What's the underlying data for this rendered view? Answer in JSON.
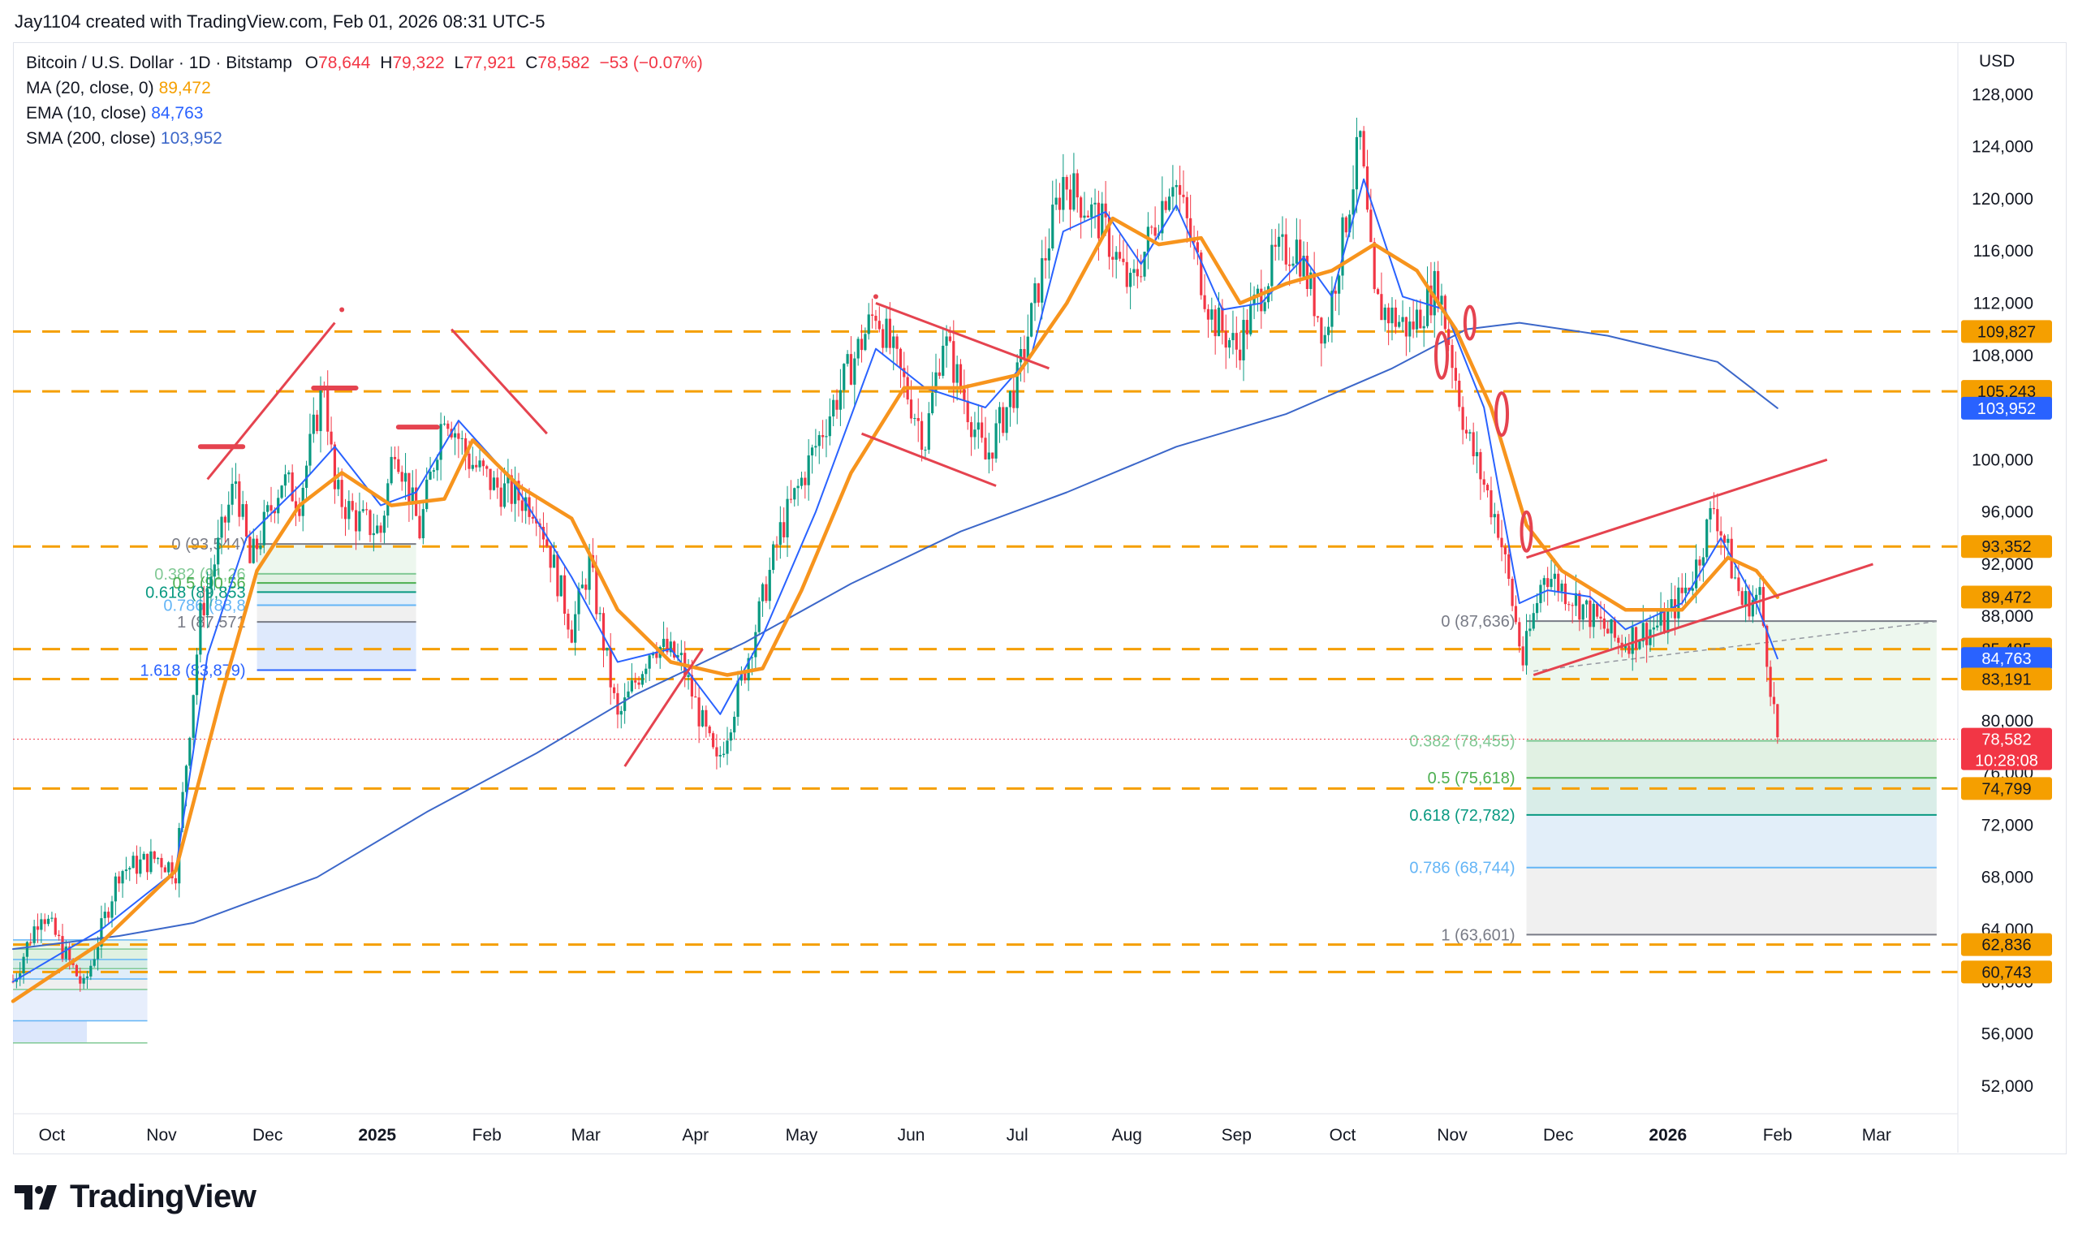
{
  "header": {
    "credit": "Jay1104 created with TradingView.com, Feb 01, 2026 08:31 UTC-5"
  },
  "legend": {
    "symbol": "Bitcoin / U.S. Dollar · 1D · Bitstamp",
    "open_label": "O",
    "open": "78,644",
    "high_label": "H",
    "high": "79,322",
    "low_label": "L",
    "low": "77,921",
    "close_label": "C",
    "close": "78,582",
    "change": "−53 (−0.07%)",
    "ma_label": "MA (20, close, 0)",
    "ma_value": "89,472",
    "ema_label": "EMA (10, close)",
    "ema_value": "84,763",
    "sma_label": "SMA (200, close)",
    "sma_value": "103,952"
  },
  "axis": {
    "currency": "USD"
  },
  "brand": {
    "name": "TradingView"
  },
  "colors": {
    "ma": "#f7941d",
    "ema": "#2962ff",
    "sma": "#3c67c9",
    "levels": "#f59f00",
    "trend": "#e5434f",
    "down": "#f23645",
    "up": "#089981"
  },
  "chart_data": {
    "type": "candlestick",
    "y_axis": {
      "min": 50000,
      "max": 132000,
      "ticks": [
        "52,000",
        "56,000",
        "60,000",
        "64,000",
        "68,000",
        "72,000",
        "76,000",
        "80,000",
        "84,000",
        "88,000",
        "92,000",
        "96,000",
        "100,000",
        "104,000",
        "108,000",
        "112,000",
        "116,000",
        "120,000",
        "124,000",
        "128,000"
      ]
    },
    "x_axis": {
      "labels": [
        {
          "text": "Oct",
          "date": "2024-10-01",
          "bold": false
        },
        {
          "text": "Nov",
          "date": "2024-11-01",
          "bold": false
        },
        {
          "text": "Dec",
          "date": "2024-12-01",
          "bold": false
        },
        {
          "text": "2025",
          "date": "2025-01-01",
          "bold": true
        },
        {
          "text": "Feb",
          "date": "2025-02-01",
          "bold": false
        },
        {
          "text": "Mar",
          "date": "2025-03-01",
          "bold": false
        },
        {
          "text": "Apr",
          "date": "2025-04-01",
          "bold": false
        },
        {
          "text": "May",
          "date": "2025-05-01",
          "bold": false
        },
        {
          "text": "Jun",
          "date": "2025-06-01",
          "bold": false
        },
        {
          "text": "Jul",
          "date": "2025-07-01",
          "bold": false
        },
        {
          "text": "Aug",
          "date": "2025-08-01",
          "bold": false
        },
        {
          "text": "Sep",
          "date": "2025-09-01",
          "bold": false
        },
        {
          "text": "Oct",
          "date": "2025-10-01",
          "bold": false
        },
        {
          "text": "Nov",
          "date": "2025-11-01",
          "bold": false
        },
        {
          "text": "Dec",
          "date": "2025-12-01",
          "bold": false
        },
        {
          "text": "2026",
          "date": "2026-01-01",
          "bold": true
        },
        {
          "text": "Feb",
          "date": "2026-02-01",
          "bold": false
        },
        {
          "text": "Mar",
          "date": "2026-03-01",
          "bold": false
        }
      ]
    },
    "date_range": [
      "2024-09-20",
      "2026-03-24"
    ],
    "price_path": [
      [
        "2024-09-20",
        60000
      ],
      [
        "2024-09-28",
        65500
      ],
      [
        "2024-10-10",
        59500
      ],
      [
        "2024-10-20",
        68500
      ],
      [
        "2024-10-31",
        69500
      ],
      [
        "2024-11-05",
        68500
      ],
      [
        "2024-11-12",
        88000
      ],
      [
        "2024-11-22",
        98500
      ],
      [
        "2024-11-26",
        92000
      ],
      [
        "2024-12-05",
        98500
      ],
      [
        "2024-12-10",
        97000
      ],
      [
        "2024-12-17",
        106000
      ],
      [
        "2024-12-20",
        97500
      ],
      [
        "2024-12-26",
        95500
      ],
      [
        "2025-01-02",
        94500
      ],
      [
        "2025-01-06",
        101500
      ],
      [
        "2025-01-13",
        94500
      ],
      [
        "2025-01-20",
        104000
      ],
      [
        "2025-01-27",
        100000
      ],
      [
        "2025-02-03",
        98000
      ],
      [
        "2025-02-15",
        96500
      ],
      [
        "2025-02-25",
        87000
      ],
      [
        "2025-03-02",
        92000
      ],
      [
        "2025-03-10",
        80000
      ],
      [
        "2025-03-20",
        86000
      ],
      [
        "2025-03-28",
        84500
      ],
      [
        "2025-04-07",
        76500
      ],
      [
        "2025-04-15",
        84000
      ],
      [
        "2025-04-25",
        94500
      ],
      [
        "2025-05-08",
        103000
      ],
      [
        "2025-05-22",
        111500
      ],
      [
        "2025-06-05",
        101500
      ],
      [
        "2025-06-10",
        109500
      ],
      [
        "2025-06-22",
        100000
      ],
      [
        "2025-07-01",
        106000
      ],
      [
        "2025-07-10",
        117000
      ],
      [
        "2025-07-14",
        121500
      ],
      [
        "2025-07-25",
        118000
      ],
      [
        "2025-08-02",
        113000
      ],
      [
        "2025-08-14",
        122000
      ],
      [
        "2025-08-25",
        111000
      ],
      [
        "2025-09-01",
        108500
      ],
      [
        "2025-09-12",
        115500
      ],
      [
        "2025-09-18",
        116500
      ],
      [
        "2025-09-26",
        109500
      ],
      [
        "2025-10-06",
        124500
      ],
      [
        "2025-10-10",
        112000
      ],
      [
        "2025-10-20",
        110000
      ],
      [
        "2025-10-28",
        113500
      ],
      [
        "2025-11-05",
        102000
      ],
      [
        "2025-11-14",
        95000
      ],
      [
        "2025-11-21",
        84500
      ],
      [
        "2025-11-27",
        91500
      ],
      [
        "2025-12-05",
        89500
      ],
      [
        "2025-12-18",
        86000
      ],
      [
        "2025-12-31",
        87500
      ],
      [
        "2026-01-08",
        91000
      ],
      [
        "2026-01-14",
        96500
      ],
      [
        "2026-01-22",
        89000
      ],
      [
        "2026-01-27",
        89500
      ],
      [
        "2026-02-01",
        78582
      ]
    ],
    "ma20": [
      [
        "2024-09-20",
        58500
      ],
      [
        "2024-10-15",
        63000
      ],
      [
        "2024-11-05",
        68500
      ],
      [
        "2024-11-18",
        82000
      ],
      [
        "2024-11-28",
        91500
      ],
      [
        "2024-12-10",
        96500
      ],
      [
        "2024-12-22",
        99000
      ],
      [
        "2025-01-05",
        96500
      ],
      [
        "2025-01-20",
        97000
      ],
      [
        "2025-01-28",
        101500
      ],
      [
        "2025-02-10",
        98000
      ],
      [
        "2025-02-25",
        95500
      ],
      [
        "2025-03-10",
        88500
      ],
      [
        "2025-03-25",
        84500
      ],
      [
        "2025-04-10",
        83500
      ],
      [
        "2025-04-20",
        84000
      ],
      [
        "2025-05-01",
        90000
      ],
      [
        "2025-05-15",
        99000
      ],
      [
        "2025-05-30",
        105500
      ],
      [
        "2025-06-15",
        105500
      ],
      [
        "2025-07-01",
        106500
      ],
      [
        "2025-07-15",
        112000
      ],
      [
        "2025-07-28",
        118500
      ],
      [
        "2025-08-10",
        116500
      ],
      [
        "2025-08-22",
        117000
      ],
      [
        "2025-09-02",
        112000
      ],
      [
        "2025-09-15",
        113500
      ],
      [
        "2025-09-28",
        114500
      ],
      [
        "2025-10-10",
        116500
      ],
      [
        "2025-10-22",
        114500
      ],
      [
        "2025-11-02",
        110000
      ],
      [
        "2025-11-12",
        104000
      ],
      [
        "2025-11-22",
        95000
      ],
      [
        "2025-12-02",
        91500
      ],
      [
        "2025-12-20",
        88500
      ],
      [
        "2026-01-05",
        88500
      ],
      [
        "2026-01-18",
        92500
      ],
      [
        "2026-01-26",
        91500
      ],
      [
        "2026-02-01",
        89472
      ]
    ],
    "ema10": [
      [
        "2024-09-20",
        60000
      ],
      [
        "2024-10-15",
        64000
      ],
      [
        "2024-11-05",
        68500
      ],
      [
        "2024-11-14",
        85000
      ],
      [
        "2024-11-25",
        94000
      ],
      [
        "2024-12-10",
        98000
      ],
      [
        "2024-12-20",
        101000
      ],
      [
        "2025-01-02",
        96500
      ],
      [
        "2025-01-12",
        97500
      ],
      [
        "2025-01-24",
        103000
      ],
      [
        "2025-02-08",
        98500
      ],
      [
        "2025-02-25",
        91000
      ],
      [
        "2025-03-10",
        84500
      ],
      [
        "2025-03-25",
        85500
      ],
      [
        "2025-04-08",
        80500
      ],
      [
        "2025-04-20",
        86500
      ],
      [
        "2025-05-05",
        96000
      ],
      [
        "2025-05-22",
        108500
      ],
      [
        "2025-06-05",
        105500
      ],
      [
        "2025-06-22",
        104000
      ],
      [
        "2025-07-05",
        108000
      ],
      [
        "2025-07-14",
        117500
      ],
      [
        "2025-07-26",
        119000
      ],
      [
        "2025-08-05",
        115000
      ],
      [
        "2025-08-15",
        119500
      ],
      [
        "2025-08-28",
        111500
      ],
      [
        "2025-09-08",
        112000
      ],
      [
        "2025-09-20",
        115500
      ],
      [
        "2025-09-28",
        112500
      ],
      [
        "2025-10-07",
        121500
      ],
      [
        "2025-10-18",
        112500
      ],
      [
        "2025-10-30",
        111500
      ],
      [
        "2025-11-10",
        104000
      ],
      [
        "2025-11-20",
        89000
      ],
      [
        "2025-11-28",
        90000
      ],
      [
        "2025-12-10",
        89500
      ],
      [
        "2025-12-20",
        87000
      ],
      [
        "2026-01-05",
        89000
      ],
      [
        "2026-01-16",
        94000
      ],
      [
        "2026-01-26",
        89000
      ],
      [
        "2026-02-01",
        84763
      ]
    ],
    "sma200": [
      [
        "2024-09-20",
        62500
      ],
      [
        "2024-10-20",
        63500
      ],
      [
        "2024-11-10",
        64500
      ],
      [
        "2024-12-15",
        68000
      ],
      [
        "2025-01-15",
        73000
      ],
      [
        "2025-02-15",
        77500
      ],
      [
        "2025-03-15",
        82000
      ],
      [
        "2025-04-15",
        86000
      ],
      [
        "2025-05-15",
        90500
      ],
      [
        "2025-06-15",
        94500
      ],
      [
        "2025-07-15",
        97500
      ],
      [
        "2025-08-15",
        101000
      ],
      [
        "2025-09-15",
        103500
      ],
      [
        "2025-10-15",
        107000
      ],
      [
        "2025-11-05",
        110000
      ],
      [
        "2025-11-20",
        110500
      ],
      [
        "2025-12-15",
        109500
      ],
      [
        "2026-01-15",
        107500
      ],
      [
        "2026-02-01",
        103952
      ]
    ],
    "horizontal_levels": [
      109827,
      105243,
      93352,
      85485,
      83191,
      74799,
      62836,
      60743
    ],
    "last_price": 78582,
    "countdown": "10:28:08",
    "price_badges": [
      {
        "value": "109,827",
        "price": 109827,
        "bg": "#f59f00",
        "fg": "#131722"
      },
      {
        "value": "105,243",
        "price": 105243,
        "bg": "#f59f00",
        "fg": "#131722"
      },
      {
        "value": "103,952",
        "price": 103952,
        "bg": "#2962ff",
        "fg": "#ffffff"
      },
      {
        "value": "93,352",
        "price": 93352,
        "bg": "#f59f00",
        "fg": "#131722"
      },
      {
        "value": "89,472",
        "price": 89472,
        "bg": "#f59f00",
        "fg": "#131722"
      },
      {
        "value": "85,485",
        "price": 85485,
        "bg": "#f59f00",
        "fg": "#131722"
      },
      {
        "value": "84,763",
        "price": 84763,
        "bg": "#2962ff",
        "fg": "#ffffff"
      },
      {
        "value": "83,191",
        "price": 83191,
        "bg": "#f59f00",
        "fg": "#131722"
      },
      {
        "value": "78,582",
        "price": 78582,
        "bg": "#f23645",
        "fg": "#ffffff"
      },
      {
        "value": "74,799",
        "price": 74799,
        "bg": "#f59f00",
        "fg": "#131722"
      },
      {
        "value": "62,836",
        "price": 62836,
        "bg": "#f59f00",
        "fg": "#131722"
      },
      {
        "value": "60,743",
        "price": 60743,
        "bg": "#f59f00",
        "fg": "#131722"
      }
    ],
    "fib_recent": {
      "start": "2025-11-22",
      "end": "2026-03-18",
      "levels": [
        {
          "label": "0 (87,636)",
          "price": 87636,
          "color": "#787b86"
        },
        {
          "label": "0.382 (78,455)",
          "price": 78455,
          "color": "#81c995"
        },
        {
          "label": "0.5 (75,618)",
          "price": 75618,
          "color": "#4caf50"
        },
        {
          "label": "0.618 (72,782)",
          "price": 72782,
          "color": "#089981"
        },
        {
          "label": "0.786 (68,744)",
          "price": 68744,
          "color": "#64b5f6"
        },
        {
          "label": "1 (63,601)",
          "price": 63601,
          "color": "#787b86"
        }
      ]
    },
    "fib_early": {
      "start": "2024-11-28",
      "end": "2025-01-12",
      "levels": [
        {
          "label": "0 (93,544)",
          "price": 93544,
          "color": "#787b86"
        },
        {
          "label": "0.382 (91,26",
          "price": 91260,
          "color": "#81c995"
        },
        {
          "label": "0.5 (90,56",
          "price": 90560,
          "color": "#4caf50"
        },
        {
          "label": "0.618 (89,853",
          "price": 89853,
          "color": "#089981"
        },
        {
          "label": "0.786 (88,8",
          "price": 88850,
          "color": "#64b5f6"
        },
        {
          "label": "1 (87,571",
          "price": 87571,
          "color": "#787b86"
        },
        {
          "label": "1.618 (83,879)",
          "price": 83879,
          "color": "#2962ff"
        }
      ]
    },
    "fib_oldest": {
      "start": "2024-09-20",
      "end": "2024-10-28",
      "levels": [
        63200,
        62500,
        61700,
        61000,
        60200,
        59400,
        57000,
        55300
      ]
    },
    "trendlines": [
      [
        [
          "2024-11-14",
          98500
        ],
        [
          "2024-12-20",
          110500
        ]
      ],
      [
        [
          "2025-01-22",
          110000
        ],
        [
          "2025-02-18",
          102000
        ]
      ],
      [
        [
          "2025-05-22",
          112000
        ],
        [
          "2025-07-10",
          107000
        ]
      ],
      [
        [
          "2025-05-18",
          102000
        ],
        [
          "2025-06-25",
          98000
        ]
      ],
      [
        [
          "2025-03-12",
          76500
        ],
        [
          "2025-04-03",
          85500
        ]
      ],
      [
        [
          "2025-11-22",
          92500
        ],
        [
          "2026-02-15",
          100000
        ]
      ],
      [
        [
          "2025-11-24",
          83500
        ],
        [
          "2026-02-28",
          92000
        ]
      ]
    ],
    "horizontal_marks": [
      [
        [
          "2024-11-12",
          101000
        ],
        [
          "2024-11-24",
          101000
        ]
      ],
      [
        [
          "2024-12-14",
          105500
        ],
        [
          "2024-12-26",
          105500
        ]
      ],
      [
        [
          "2025-01-07",
          102500
        ],
        [
          "2025-01-18",
          102500
        ]
      ]
    ],
    "ellipses": [
      {
        "date": "2025-10-29",
        "price": 108000,
        "rx": 7,
        "ry": 28
      },
      {
        "date": "2025-11-06",
        "price": 110500,
        "rx": 6,
        "ry": 20
      },
      {
        "date": "2025-11-15",
        "price": 103500,
        "rx": 7,
        "ry": 26
      },
      {
        "date": "2025-11-22",
        "price": 94500,
        "rx": 6,
        "ry": 24
      }
    ]
  }
}
